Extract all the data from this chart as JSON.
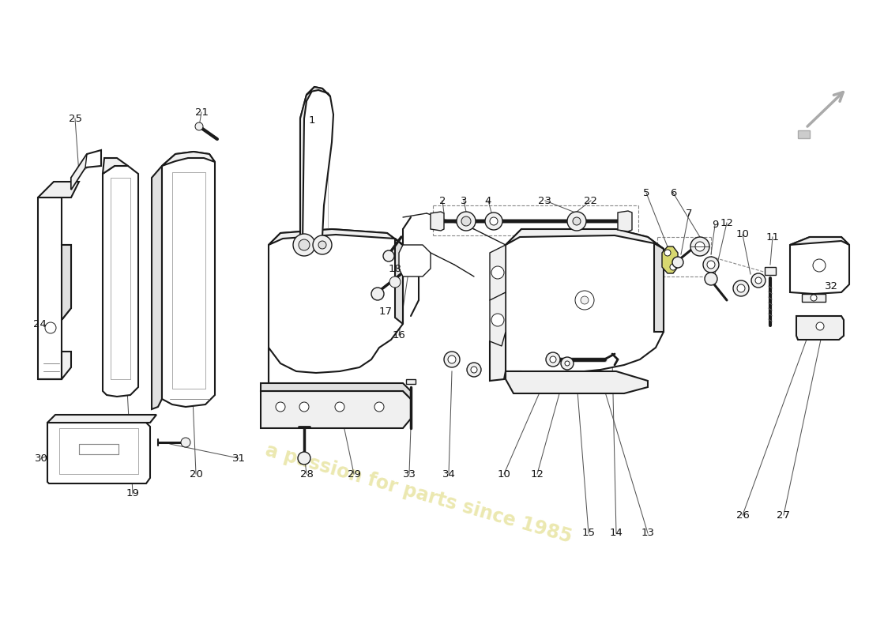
{
  "background_color": "#ffffff",
  "line_color": "#1a1a1a",
  "light_fill": "#f0f0f0",
  "mid_fill": "#e0e0e0",
  "white_fill": "#ffffff",
  "yellow_fill": "#d8d870",
  "watermark_text": "a passion for parts since 1985",
  "watermark_color": "#d4cc50",
  "watermark_alpha": 0.45,
  "arrow_color": "#999999",
  "leader_color": "#444444",
  "dashed_color": "#888888",
  "label_fontsize": 9.5,
  "lw_thick": 1.5,
  "lw_mid": 1.0,
  "lw_thin": 0.7
}
